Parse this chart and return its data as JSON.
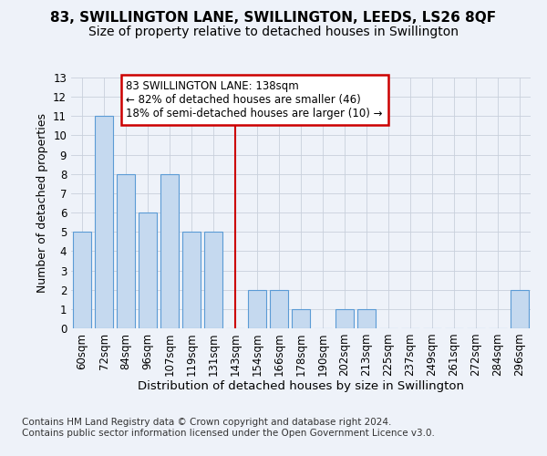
{
  "title1": "83, SWILLINGTON LANE, SWILLINGTON, LEEDS, LS26 8QF",
  "title2": "Size of property relative to detached houses in Swillington",
  "xlabel": "Distribution of detached houses by size in Swillington",
  "ylabel": "Number of detached properties",
  "categories": [
    "60sqm",
    "72sqm",
    "84sqm",
    "96sqm",
    "107sqm",
    "119sqm",
    "131sqm",
    "143sqm",
    "154sqm",
    "166sqm",
    "178sqm",
    "190sqm",
    "202sqm",
    "213sqm",
    "225sqm",
    "237sqm",
    "249sqm",
    "261sqm",
    "272sqm",
    "284sqm",
    "296sqm"
  ],
  "values": [
    5,
    11,
    8,
    6,
    8,
    5,
    5,
    0,
    2,
    2,
    1,
    0,
    1,
    1,
    0,
    0,
    0,
    0,
    0,
    0,
    2
  ],
  "bar_color": "#c5d9ef",
  "bar_edge_color": "#5b9bd5",
  "red_line_index": 7,
  "annotation_text": "83 SWILLINGTON LANE: 138sqm\n← 82% of detached houses are smaller (46)\n18% of semi-detached houses are larger (10) →",
  "annotation_box_color": "#ffffff",
  "annotation_box_edge": "#cc0000",
  "ylim": [
    0,
    13
  ],
  "yticks": [
    0,
    1,
    2,
    3,
    4,
    5,
    6,
    7,
    8,
    9,
    10,
    11,
    12,
    13
  ],
  "footer": "Contains HM Land Registry data © Crown copyright and database right 2024.\nContains public sector information licensed under the Open Government Licence v3.0.",
  "title1_fontsize": 11,
  "title2_fontsize": 10,
  "xlabel_fontsize": 9.5,
  "ylabel_fontsize": 9,
  "tick_fontsize": 8.5,
  "footer_fontsize": 7.5,
  "background_color": "#eef2f9"
}
